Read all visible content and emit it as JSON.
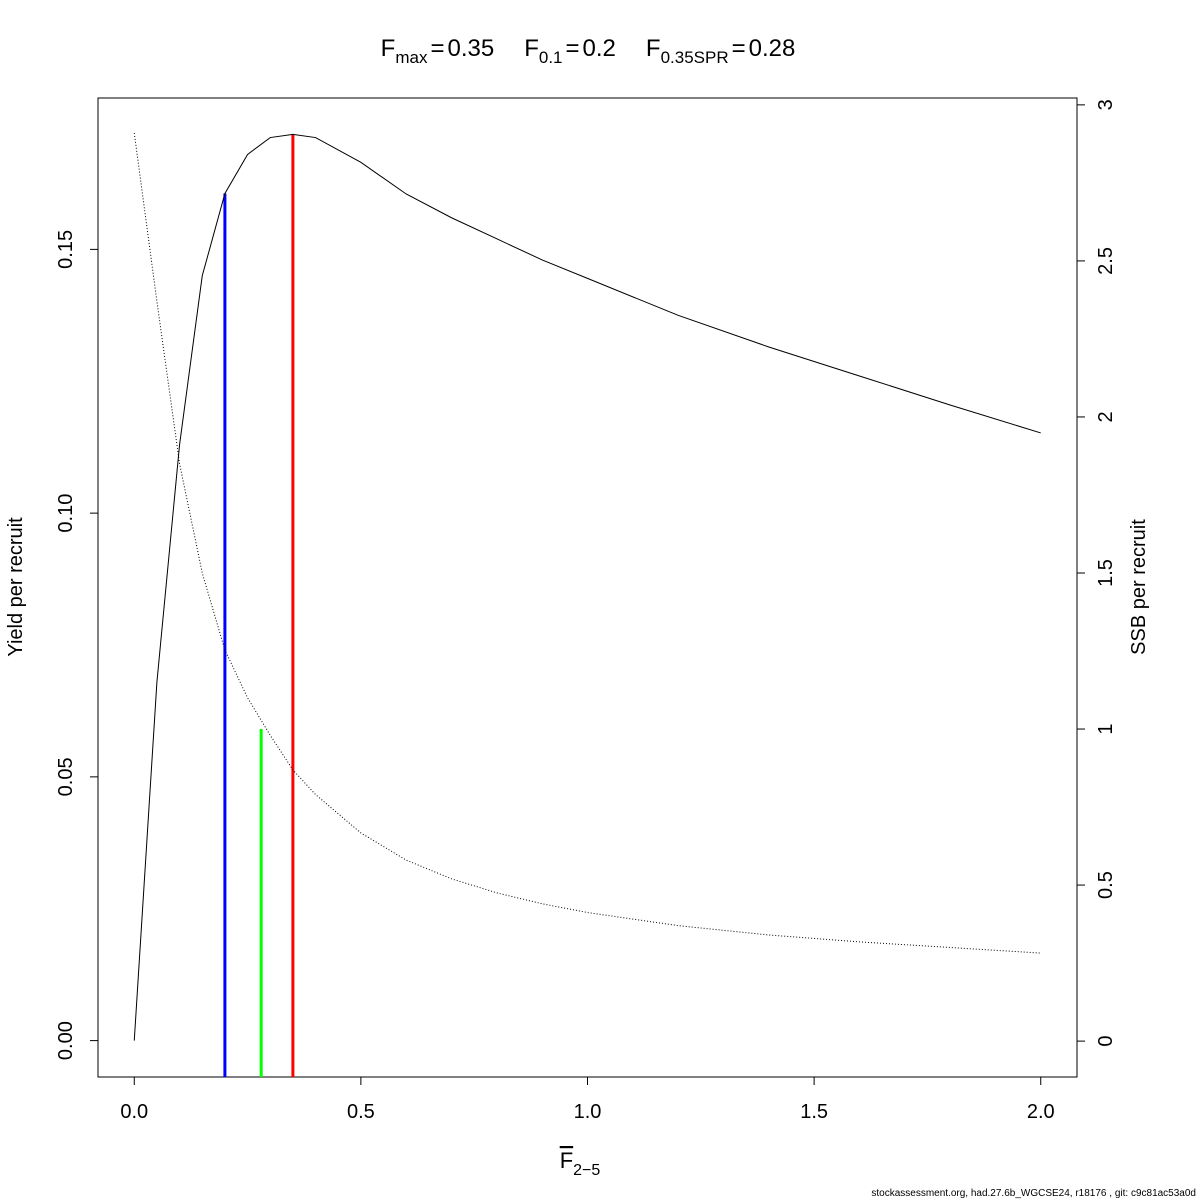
{
  "chart_data": {
    "type": "line",
    "title_parts": [
      {
        "symbol": "F",
        "sub": "max",
        "eq": "=",
        "value": 0.35
      },
      {
        "symbol": "F",
        "sub": "0.1",
        "eq": "=",
        "value": 0.2
      },
      {
        "symbol": "F",
        "sub": "0.35SPR",
        "eq": "=",
        "value": 0.28
      }
    ],
    "xlabel": {
      "symbol": "F",
      "sub": "2−5"
    },
    "ylabel": "Yield per recruit",
    "y2label": "SSB per recruit",
    "footer": "stockassessment.org, had.27.6b_WGCSE24, r18176 , git: c9c81ac53a0d",
    "x": [
      0,
      0.05,
      0.1,
      0.15,
      0.2,
      0.25,
      0.3,
      0.35,
      0.4,
      0.5,
      0.6,
      0.7,
      0.8,
      0.9,
      1.0,
      1.2,
      1.4,
      1.6,
      1.8,
      2.0
    ],
    "series": [
      {
        "name": "Yield per recruit",
        "color": "#000000",
        "dash": "solid",
        "values": [
          0,
          0.068,
          0.113,
          0.145,
          0.1606,
          0.168,
          0.1712,
          0.1718,
          0.1712,
          0.1665,
          0.1605,
          0.156,
          0.152,
          0.148,
          0.1445,
          0.1375,
          0.1315,
          0.126,
          0.1205,
          0.1152
        ]
      },
      {
        "name": "SSB per recruit",
        "color": "#000000",
        "dash": "dotted",
        "axis": "y2",
        "values": [
          2.91,
          2.37,
          1.85,
          1.5,
          1.253,
          1.1,
          0.98,
          0.869,
          0.79,
          0.667,
          0.58,
          0.52,
          0.475,
          0.44,
          0.412,
          0.37,
          0.34,
          0.318,
          0.3,
          0.282
        ]
      }
    ],
    "reference_lines": [
      {
        "f": 0.35,
        "height": 0.1718,
        "color": "#ff0000"
      },
      {
        "f": 0.2,
        "height": 0.1606,
        "color": "#0000ff"
      },
      {
        "f": 0.28,
        "height": 1.0,
        "axis": "y2",
        "color": "#00ff00"
      }
    ],
    "xlim": [
      -0.08,
      2.08
    ],
    "ylim": [
      -0.0069,
      0.1787
    ],
    "y2lim": [
      -0.115,
      3.022
    ],
    "xticks": [
      {
        "value": 0,
        "label": "0.0"
      },
      0.5,
      {
        "value": 1,
        "label": "1.0"
      },
      1.5,
      {
        "value": 2,
        "label": "2.0"
      }
    ],
    "yticks": [
      {
        "value": 0,
        "label": "0.00"
      },
      0.05,
      {
        "value": 0.1,
        "label": "0.10"
      },
      0.15
    ],
    "y2ticks": [
      0,
      0.5,
      1,
      1.5,
      2,
      2.5,
      3
    ]
  }
}
